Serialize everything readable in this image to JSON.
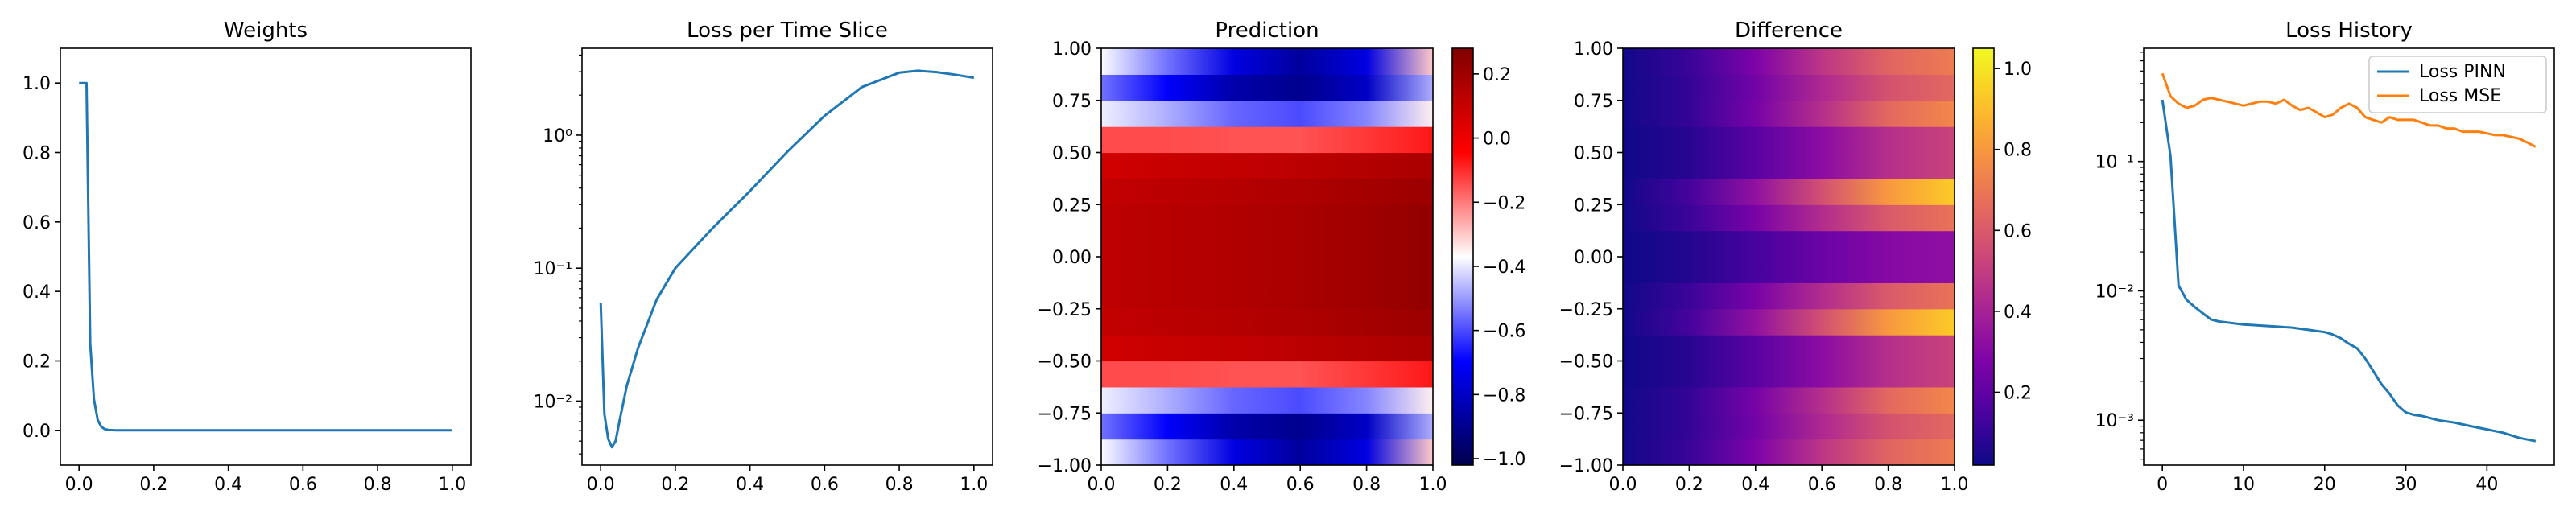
{
  "chart_data": [
    {
      "type": "line",
      "title": "Weights",
      "xlabel": "",
      "ylabel": "",
      "xlim": [
        -0.05,
        1.05
      ],
      "ylim": [
        -0.1,
        1.1
      ],
      "xticks": [
        0.0,
        0.2,
        0.4,
        0.6,
        0.8,
        1.0
      ],
      "xtick_labels": [
        "0.0",
        "0.2",
        "0.4",
        "0.6",
        "0.8",
        "1.0"
      ],
      "yticks": [
        0.0,
        0.2,
        0.4,
        0.6,
        0.8,
        1.0
      ],
      "ytick_labels": [
        "0.0",
        "0.2",
        "0.4",
        "0.6",
        "0.8",
        "1.0"
      ],
      "series": [
        {
          "color": "#1f77b4",
          "x": [
            0.0,
            0.02,
            0.03,
            0.04,
            0.05,
            0.06,
            0.07,
            0.08,
            0.1,
            0.2,
            0.4,
            0.6,
            0.8,
            1.0
          ],
          "y": [
            1.0,
            1.0,
            0.25,
            0.09,
            0.03,
            0.01,
            0.003,
            0.001,
            0.0,
            0.0,
            0.0,
            0.0,
            0.0,
            0.0
          ]
        }
      ]
    },
    {
      "type": "line",
      "title": "Loss per Time Slice",
      "xlabel": "",
      "ylabel": "",
      "yscale": "log",
      "xlim": [
        -0.05,
        1.05
      ],
      "ylim": [
        0.0033,
        4.5
      ],
      "xticks": [
        0.0,
        0.2,
        0.4,
        0.6,
        0.8,
        1.0
      ],
      "xtick_labels": [
        "0.0",
        "0.2",
        "0.4",
        "0.6",
        "0.8",
        "1.0"
      ],
      "yticks": [
        0.01,
        0.1,
        1.0
      ],
      "ytick_labels": [
        "10⁻²",
        "10⁻¹",
        "10⁰"
      ],
      "series": [
        {
          "color": "#1f77b4",
          "x": [
            0.0,
            0.01,
            0.02,
            0.03,
            0.04,
            0.05,
            0.07,
            0.1,
            0.15,
            0.2,
            0.3,
            0.4,
            0.5,
            0.6,
            0.7,
            0.8,
            0.85,
            0.9,
            0.95,
            1.0
          ],
          "y": [
            0.055,
            0.008,
            0.0052,
            0.0045,
            0.005,
            0.007,
            0.013,
            0.025,
            0.058,
            0.1,
            0.2,
            0.38,
            0.75,
            1.4,
            2.3,
            2.95,
            3.05,
            2.98,
            2.85,
            2.7
          ]
        }
      ]
    },
    {
      "type": "heatmap",
      "title": "Prediction",
      "xlabel": "",
      "ylabel": "",
      "colormap": "seismic",
      "xlim": [
        0.0,
        1.0
      ],
      "ylim": [
        -1.0,
        1.0
      ],
      "xticks": [
        0.0,
        0.2,
        0.4,
        0.6,
        0.8,
        1.0
      ],
      "xtick_labels": [
        "0.0",
        "0.2",
        "0.4",
        "0.6",
        "0.8",
        "1.0"
      ],
      "yticks": [
        -1.0,
        -0.75,
        -0.5,
        -0.25,
        0.0,
        0.25,
        0.5,
        0.75,
        1.0
      ],
      "ytick_labels": [
        "−1.00",
        "−0.75",
        "−0.50",
        "−0.25",
        "0.00",
        "0.25",
        "0.50",
        "0.75",
        "1.00"
      ],
      "colorbar": {
        "range": [
          -1.02,
          0.28
        ],
        "ticks": [
          0.2,
          0.0,
          -0.2,
          -0.4,
          -0.6,
          -0.8,
          -1.0
        ],
        "tick_labels": [
          "0.2",
          "0.0",
          "−0.2",
          "−0.4",
          "−0.6",
          "−0.8",
          "−1.0"
        ]
      },
      "grid_x": [
        0.0,
        0.2,
        0.4,
        0.6,
        0.8,
        1.0
      ],
      "grid_y": [
        -1.0,
        -0.875,
        -0.75,
        -0.625,
        -0.5,
        -0.375,
        -0.25,
        0.0,
        0.25,
        0.375,
        0.5,
        0.625,
        0.75,
        0.875,
        1.0
      ],
      "values": [
        [
          -0.1,
          -0.3,
          -0.55,
          -0.75,
          -0.6,
          -0.05
        ],
        [
          -0.65,
          -0.8,
          -0.95,
          -1.0,
          -0.9,
          -0.55
        ],
        [
          -0.45,
          -0.6,
          -0.75,
          -0.8,
          -0.7,
          -0.4
        ],
        [
          -0.33,
          -0.35,
          -0.38,
          -0.4,
          -0.35,
          -0.3
        ],
        [
          0.05,
          0.07,
          0.08,
          0.1,
          0.12,
          0.15
        ],
        [
          0.1,
          0.12,
          0.14,
          0.16,
          0.18,
          0.2
        ],
        [
          0.12,
          0.14,
          0.15,
          0.17,
          0.19,
          0.22
        ],
        [
          0.12,
          0.14,
          0.16,
          0.18,
          0.21,
          0.25
        ],
        [
          0.12,
          0.14,
          0.15,
          0.17,
          0.19,
          0.22
        ],
        [
          0.1,
          0.12,
          0.14,
          0.16,
          0.18,
          0.2
        ],
        [
          0.05,
          0.07,
          0.08,
          0.1,
          0.12,
          0.15
        ],
        [
          -0.33,
          -0.35,
          -0.38,
          -0.4,
          -0.35,
          -0.3
        ],
        [
          -0.45,
          -0.6,
          -0.75,
          -0.8,
          -0.7,
          -0.4
        ],
        [
          -0.65,
          -0.8,
          -0.95,
          -1.0,
          -0.9,
          -0.55
        ],
        [
          -0.1,
          -0.3,
          -0.55,
          -0.75,
          -0.6,
          -0.05
        ]
      ]
    },
    {
      "type": "heatmap",
      "title": "Difference",
      "xlabel": "",
      "ylabel": "",
      "colormap": "plasma",
      "xlim": [
        0.0,
        1.0
      ],
      "ylim": [
        -1.0,
        1.0
      ],
      "xticks": [
        0.0,
        0.2,
        0.4,
        0.6,
        0.8,
        1.0
      ],
      "xtick_labels": [
        "0.0",
        "0.2",
        "0.4",
        "0.6",
        "0.8",
        "1.0"
      ],
      "yticks": [
        -1.0,
        -0.75,
        -0.5,
        -0.25,
        0.0,
        0.25,
        0.5,
        0.75,
        1.0
      ],
      "ytick_labels": [
        "−1.00",
        "−0.75",
        "−0.50",
        "−0.25",
        "0.00",
        "0.25",
        "0.50",
        "0.75",
        "1.00"
      ],
      "colorbar": {
        "range": [
          0.02,
          1.05
        ],
        "ticks": [
          1.0,
          0.8,
          0.6,
          0.4,
          0.2
        ],
        "tick_labels": [
          "1.0",
          "0.8",
          "0.6",
          "0.4",
          "0.2"
        ]
      },
      "grid_x": [
        0.0,
        0.2,
        0.4,
        0.6,
        0.8,
        1.0
      ],
      "grid_y": [
        -1.0,
        -0.875,
        -0.75,
        -0.625,
        -0.5,
        -0.375,
        -0.25,
        -0.125,
        0.0,
        0.125,
        0.25,
        0.375,
        0.5,
        0.625,
        0.75,
        0.875,
        1.0
      ],
      "values": [
        [
          0.03,
          0.1,
          0.25,
          0.45,
          0.62,
          0.68
        ],
        [
          0.03,
          0.12,
          0.3,
          0.5,
          0.65,
          0.75
        ],
        [
          0.03,
          0.08,
          0.2,
          0.35,
          0.5,
          0.55
        ],
        [
          0.03,
          0.12,
          0.32,
          0.55,
          0.8,
          0.95
        ],
        [
          0.02,
          0.03,
          0.05,
          0.08,
          0.1,
          0.1
        ],
        [
          0.03,
          0.12,
          0.32,
          0.55,
          0.8,
          0.95
        ],
        [
          0.03,
          0.15,
          0.35,
          0.58,
          0.8,
          0.92
        ],
        [
          0.03,
          0.08,
          0.18,
          0.3,
          0.4,
          0.45
        ],
        [
          0.02,
          0.05,
          0.1,
          0.15,
          0.2,
          0.2
        ],
        [
          0.03,
          0.08,
          0.18,
          0.3,
          0.4,
          0.45
        ],
        [
          0.03,
          0.15,
          0.35,
          0.58,
          0.8,
          0.92
        ],
        [
          0.03,
          0.12,
          0.32,
          0.55,
          0.8,
          0.95
        ],
        [
          0.02,
          0.03,
          0.05,
          0.08,
          0.1,
          0.1
        ],
        [
          0.03,
          0.12,
          0.32,
          0.55,
          0.8,
          0.95
        ],
        [
          0.03,
          0.08,
          0.2,
          0.35,
          0.5,
          0.55
        ],
        [
          0.03,
          0.12,
          0.3,
          0.5,
          0.65,
          0.75
        ],
        [
          0.03,
          0.1,
          0.25,
          0.45,
          0.62,
          0.68
        ]
      ]
    },
    {
      "type": "line",
      "title": "Loss History",
      "xlabel": "",
      "ylabel": "",
      "yscale": "log",
      "xlim": [
        -2.3,
        48.3
      ],
      "ylim": [
        0.00045,
        0.75
      ],
      "xticks": [
        0,
        10,
        20,
        30,
        40
      ],
      "xtick_labels": [
        "0",
        "10",
        "20",
        "30",
        "40"
      ],
      "yticks": [
        0.001,
        0.01,
        0.1
      ],
      "ytick_labels": [
        "10⁻³",
        "10⁻²",
        "10⁻¹"
      ],
      "legend": {
        "position": "top-right"
      },
      "series": [
        {
          "name": "Loss PINN",
          "color": "#1f77b4",
          "x": [
            0,
            1,
            2,
            3,
            4,
            5,
            6,
            7,
            8,
            10,
            12,
            14,
            16,
            18,
            20,
            21,
            22,
            23,
            24,
            25,
            26,
            27,
            28,
            29,
            30,
            31,
            32,
            34,
            36,
            38,
            40,
            42,
            44,
            46
          ],
          "y": [
            0.3,
            0.11,
            0.011,
            0.0085,
            0.0075,
            0.0067,
            0.006,
            0.0058,
            0.0057,
            0.0055,
            0.0054,
            0.0053,
            0.0052,
            0.005,
            0.0048,
            0.0046,
            0.0043,
            0.0039,
            0.0036,
            0.003,
            0.0024,
            0.0019,
            0.0016,
            0.0013,
            0.00115,
            0.0011,
            0.00108,
            0.001,
            0.00096,
            0.0009,
            0.00085,
            0.0008,
            0.00073,
            0.00069
          ]
        },
        {
          "name": "Loss MSE",
          "color": "#ff7f0e",
          "x": [
            0,
            1,
            2,
            3,
            4,
            5,
            6,
            7,
            8,
            9,
            10,
            11,
            12,
            13,
            14,
            15,
            16,
            17,
            18,
            19,
            20,
            21,
            22,
            23,
            24,
            25,
            26,
            27,
            28,
            29,
            30,
            31,
            32,
            33,
            34,
            35,
            36,
            37,
            38,
            39,
            40,
            41,
            42,
            43,
            44,
            45,
            46
          ],
          "y": [
            0.48,
            0.32,
            0.28,
            0.26,
            0.27,
            0.3,
            0.31,
            0.3,
            0.29,
            0.28,
            0.27,
            0.28,
            0.29,
            0.29,
            0.28,
            0.3,
            0.27,
            0.25,
            0.26,
            0.24,
            0.22,
            0.23,
            0.26,
            0.28,
            0.26,
            0.22,
            0.21,
            0.2,
            0.22,
            0.21,
            0.21,
            0.21,
            0.2,
            0.19,
            0.19,
            0.18,
            0.18,
            0.17,
            0.17,
            0.17,
            0.165,
            0.16,
            0.16,
            0.155,
            0.15,
            0.14,
            0.13
          ]
        }
      ]
    }
  ]
}
